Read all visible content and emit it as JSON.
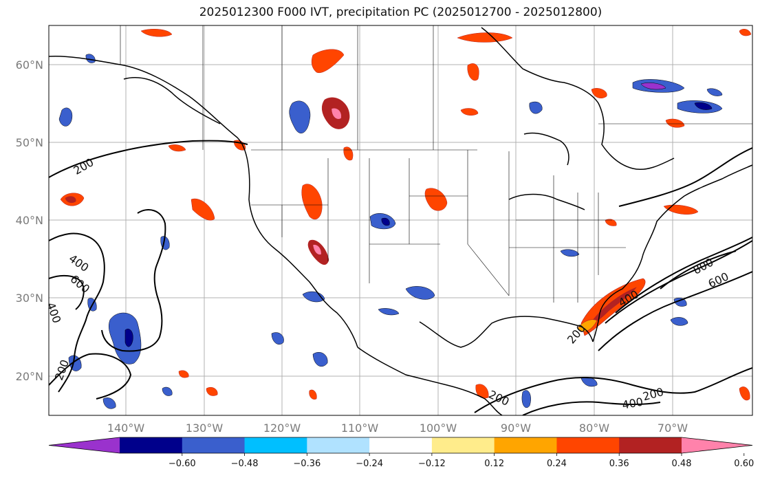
{
  "title": "2025012300 F000 IVT, precipitation PC (2025012700 - 2025012800)",
  "map": {
    "lat_labels": [
      "60°N",
      "50°N",
      "40°N",
      "30°N",
      "20°N"
    ],
    "lon_labels": [
      "140°W",
      "130°W",
      "120°W",
      "110°W",
      "100°W",
      "90°W",
      "80°W",
      "70°W"
    ],
    "ivt_contour_labels": [
      "200",
      "400",
      "600",
      "400",
      "200",
      "200",
      "400",
      "600",
      "800",
      "200",
      "400",
      "200"
    ]
  },
  "colorbar": {
    "ticks": [
      "−0.60",
      "−0.48",
      "−0.36",
      "−0.24",
      "−0.12",
      "0.12",
      "0.24",
      "0.36",
      "0.48",
      "0.60"
    ],
    "colors": [
      "#9a32cd",
      "#00008b",
      "#3a5fcd",
      "#00bfff",
      "#b0e2ff",
      "#ffffff",
      "#ffec8b",
      "#ffa500",
      "#ff4500",
      "#b22222",
      "#ff82ab"
    ]
  }
}
